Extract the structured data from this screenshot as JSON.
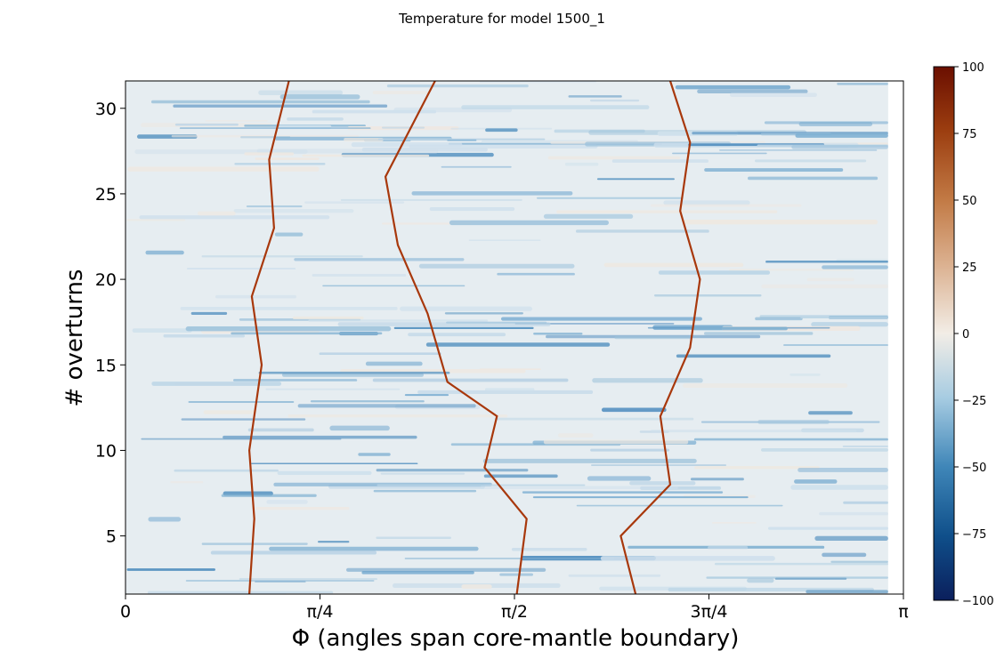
{
  "chart_data": {
    "type": "heatmap",
    "title": "Temperature for model 1500_1",
    "xlabel": "Φ (angles span core-mantle boundary)",
    "ylabel": "# overturns",
    "xlim": [
      0,
      3.14159
    ],
    "ylim": [
      1.6,
      31.6
    ],
    "xticks": [
      {
        "value": 0,
        "label": "0"
      },
      {
        "value": 0.7854,
        "label": "π/4"
      },
      {
        "value": 1.5708,
        "label": "π/2"
      },
      {
        "value": 2.3562,
        "label": "3π/4"
      },
      {
        "value": 3.14159,
        "label": "π"
      }
    ],
    "yticks": [
      5,
      10,
      15,
      20,
      25,
      30
    ],
    "data_x_extent": [
      0,
      3.08
    ],
    "colorbar": {
      "min": -100,
      "max": 100,
      "ticks": [
        "100",
        "75",
        "50",
        "25",
        "0",
        "−25",
        "−50",
        "−75",
        "−100"
      ],
      "colormap": "blue-white-orange diverging",
      "colors": {
        "low": "#0b1f5c",
        "mid": "#f2ede6",
        "high": "#6b0f00"
      }
    },
    "plumes": [
      {
        "name": "plume-1",
        "points": [
          [
            0.5,
            1.6
          ],
          [
            0.52,
            6
          ],
          [
            0.5,
            10
          ],
          [
            0.55,
            15
          ],
          [
            0.51,
            19
          ],
          [
            0.6,
            23
          ],
          [
            0.58,
            27
          ],
          [
            0.66,
            31.6
          ]
        ]
      },
      {
        "name": "plume-2",
        "points": [
          [
            1.58,
            1.6
          ],
          [
            1.62,
            6
          ],
          [
            1.45,
            9
          ],
          [
            1.5,
            12
          ],
          [
            1.3,
            14
          ],
          [
            1.22,
            18
          ],
          [
            1.1,
            22
          ],
          [
            1.05,
            26
          ],
          [
            1.25,
            31.6
          ]
        ]
      },
      {
        "name": "plume-3",
        "points": [
          [
            2.06,
            1.6
          ],
          [
            2.0,
            5
          ],
          [
            2.2,
            8
          ],
          [
            2.16,
            12
          ],
          [
            2.28,
            16
          ],
          [
            2.32,
            20
          ],
          [
            2.24,
            24
          ],
          [
            2.28,
            28
          ],
          [
            2.2,
            31.6
          ]
        ]
      }
    ]
  }
}
